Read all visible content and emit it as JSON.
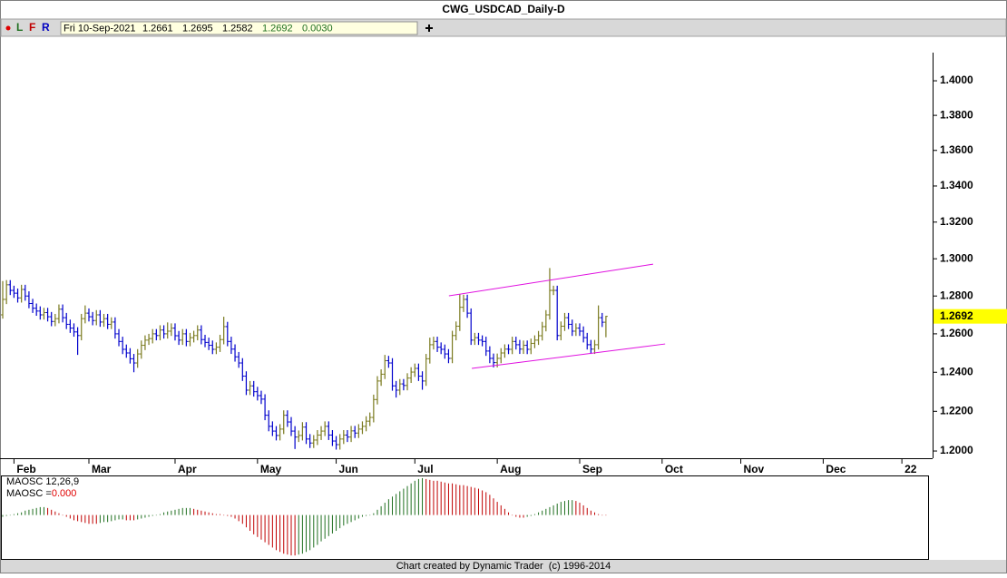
{
  "toolbar": {
    "buttons": [
      "L",
      "F",
      "R"
    ],
    "date": "Fri 10-Sep-2021",
    "change": "0.0030"
  },
  "footer": "Chart created by Dynamic Trader  (c) 1996-2014",
  "chart_data": [
    {
      "type": "ohlc",
      "title": "CWG_USDCAD_Daily-D",
      "log_scale": true,
      "up_color": "#7a7a1e",
      "down_color": "#0000cc",
      "xlim": [
        -0.73,
        248.2
      ],
      "xticks": [
        {
          "value": 3,
          "label": "Feb"
        },
        {
          "value": 23,
          "label": "Mar"
        },
        {
          "value": 46,
          "label": "Apr"
        },
        {
          "value": 68,
          "label": "May"
        },
        {
          "value": 89,
          "label": "Jun"
        },
        {
          "value": 110,
          "label": "Jul"
        },
        {
          "value": 132,
          "label": "Aug"
        },
        {
          "value": 154,
          "label": "Sep"
        },
        {
          "value": 176,
          "label": "Oct"
        },
        {
          "value": 197,
          "label": "Nov"
        },
        {
          "value": 219,
          "label": "Dec"
        },
        {
          "value": 240,
          "label": "22"
        }
      ],
      "ylim": [
        1.1964,
        1.4251
      ],
      "yticks": [
        {
          "value": 1.2,
          "label": "1.2000"
        },
        {
          "value": 1.22,
          "label": "1.2200"
        },
        {
          "value": 1.24,
          "label": "1.2400"
        },
        {
          "value": 1.26,
          "label": "1.2600"
        },
        {
          "value": 1.28,
          "label": "1.2800"
        },
        {
          "value": 1.3,
          "label": "1.3000"
        },
        {
          "value": 1.32,
          "label": "1.3200"
        },
        {
          "value": 1.34,
          "label": "1.3400"
        },
        {
          "value": 1.36,
          "label": "1.3600"
        },
        {
          "value": 1.38,
          "label": "1.3800"
        },
        {
          "value": 1.4,
          "label": "1.4000"
        }
      ],
      "last_price_color": "#ffff00",
      "trendline_color": "#e010e0",
      "trendlines": [
        {
          "x": [
            119.1,
            173.6
          ],
          "y": [
            1.2801,
            1.2971
          ]
        },
        {
          "x": [
            125.2,
            176.8
          ],
          "y": [
            1.242,
            1.2547
          ]
        }
      ],
      "open": [
        1.27,
        1.2782,
        1.286,
        1.283,
        1.2815,
        1.279,
        1.2835,
        1.28,
        1.276,
        1.2735,
        1.272,
        1.27,
        1.2712,
        1.269,
        1.2665,
        1.268,
        1.273,
        1.2685,
        1.265,
        1.263,
        1.261,
        1.2591,
        1.268,
        1.2709,
        1.269,
        1.267,
        1.27,
        1.2662,
        1.268,
        1.265,
        1.2662,
        1.26,
        1.256,
        1.2519,
        1.25,
        1.247,
        1.2448,
        1.2495,
        1.254,
        1.2567,
        1.2575,
        1.26,
        1.2591,
        1.262,
        1.26,
        1.2614,
        1.263,
        1.259,
        1.2567,
        1.26,
        1.256,
        1.258,
        1.2591,
        1.262,
        1.257,
        1.2555,
        1.254,
        1.2519,
        1.253,
        1.257,
        1.2638,
        1.256,
        1.252,
        1.248,
        1.2448,
        1.238,
        1.2308,
        1.233,
        1.23,
        1.228,
        1.2262,
        1.218,
        1.2124,
        1.21,
        1.2078,
        1.211,
        1.218,
        1.2146,
        1.21,
        1.207,
        1.2078,
        1.212,
        1.206,
        1.204,
        1.2055,
        1.208,
        1.21,
        1.2124,
        1.208,
        1.205,
        1.2032,
        1.206,
        1.208,
        1.207,
        1.2101,
        1.209,
        1.211,
        1.2124,
        1.215,
        1.2169,
        1.226,
        1.2355,
        1.239,
        1.246,
        1.2448,
        1.233,
        1.2308,
        1.234,
        1.2332,
        1.237,
        1.2401,
        1.242,
        1.238,
        1.2355,
        1.247,
        1.2543,
        1.256,
        1.253,
        1.2519,
        1.2495,
        1.2472,
        1.2591,
        1.264,
        1.274,
        1.2782,
        1.2709,
        1.2567,
        1.258,
        1.2567,
        1.256,
        1.251,
        1.2472,
        1.245,
        1.2472,
        1.25,
        1.252,
        1.2519,
        1.256,
        1.2543,
        1.252,
        1.254,
        1.2519,
        1.255,
        1.2567,
        1.259,
        1.2638,
        1.27,
        1.283,
        1.283,
        1.2591,
        1.264,
        1.2685,
        1.265,
        1.2614,
        1.263,
        1.2614,
        1.258,
        1.2543,
        1.252,
        1.2543,
        1.2685,
        1.2661
      ],
      "high": [
        1.288,
        1.2885,
        1.2885,
        1.2855,
        1.284,
        1.286,
        1.286,
        1.2825,
        1.2785,
        1.276,
        1.2745,
        1.2737,
        1.2737,
        1.2715,
        1.2705,
        1.2755,
        1.2755,
        1.271,
        1.2675,
        1.2655,
        1.2635,
        1.2705,
        1.275,
        1.2734,
        1.2715,
        1.2725,
        1.2725,
        1.2705,
        1.2705,
        1.2687,
        1.2687,
        1.2625,
        1.2585,
        1.2544,
        1.2525,
        1.2495,
        1.252,
        1.2565,
        1.2592,
        1.26,
        1.2625,
        1.2625,
        1.2645,
        1.2645,
        1.266,
        1.2655,
        1.2655,
        1.2615,
        1.2625,
        1.2625,
        1.2605,
        1.2616,
        1.2645,
        1.2645,
        1.2595,
        1.258,
        1.2565,
        1.2555,
        1.2595,
        1.269,
        1.2663,
        1.2585,
        1.2545,
        1.2505,
        1.2473,
        1.2405,
        1.2355,
        1.2355,
        1.2325,
        1.2305,
        1.2287,
        1.2205,
        1.2149,
        1.2125,
        1.2135,
        1.2205,
        1.2205,
        1.2171,
        1.2125,
        1.2103,
        1.2145,
        1.2145,
        1.2085,
        1.208,
        1.2105,
        1.2125,
        1.2149,
        1.2149,
        1.2105,
        1.2075,
        1.2085,
        1.2105,
        1.2105,
        1.2126,
        1.2126,
        1.2135,
        1.2149,
        1.2175,
        1.2194,
        1.2285,
        1.238,
        1.2415,
        1.249,
        1.2485,
        1.2473,
        1.2355,
        1.2365,
        1.2365,
        1.2395,
        1.2426,
        1.2445,
        1.2445,
        1.2405,
        1.2495,
        1.258,
        1.2585,
        1.2585,
        1.2555,
        1.2544,
        1.252,
        1.2616,
        1.2665,
        1.281,
        1.2807,
        1.2807,
        1.2734,
        1.2605,
        1.2605,
        1.2592,
        1.2585,
        1.2535,
        1.2497,
        1.2497,
        1.2525,
        1.2545,
        1.2545,
        1.2585,
        1.2585,
        1.2568,
        1.2565,
        1.2565,
        1.2575,
        1.2592,
        1.2615,
        1.2663,
        1.2725,
        1.295,
        1.2855,
        1.2855,
        1.2665,
        1.271,
        1.271,
        1.2675,
        1.2655,
        1.2655,
        1.2639,
        1.2605,
        1.2568,
        1.2568,
        1.275,
        1.271,
        1.2695
      ],
      "low": [
        1.268,
        1.2757,
        1.2805,
        1.279,
        1.2765,
        1.2765,
        1.2775,
        1.2735,
        1.271,
        1.2695,
        1.2675,
        1.2675,
        1.2665,
        1.264,
        1.264,
        1.2655,
        1.266,
        1.2625,
        1.2605,
        1.2585,
        1.249,
        1.2566,
        1.2655,
        1.2665,
        1.2645,
        1.2645,
        1.2637,
        1.2637,
        1.2625,
        1.2625,
        1.2575,
        1.2535,
        1.2494,
        1.2475,
        1.2445,
        1.24,
        1.2423,
        1.247,
        1.2515,
        1.2542,
        1.255,
        1.2566,
        1.2566,
        1.2575,
        1.2575,
        1.2589,
        1.2565,
        1.2542,
        1.2542,
        1.2535,
        1.2535,
        1.2555,
        1.2566,
        1.2545,
        1.253,
        1.2515,
        1.2494,
        1.2494,
        1.2505,
        1.2545,
        1.2535,
        1.2495,
        1.2455,
        1.2423,
        1.2355,
        1.2283,
        1.2283,
        1.2275,
        1.2255,
        1.2237,
        1.2155,
        1.2099,
        1.2075,
        1.2053,
        1.2053,
        1.2085,
        1.2121,
        1.2075,
        1.201,
        1.2045,
        1.2053,
        1.2035,
        1.2015,
        1.2015,
        1.203,
        1.2055,
        1.2075,
        1.2055,
        1.2025,
        1.2007,
        1.2007,
        1.2035,
        1.2045,
        1.2045,
        1.2065,
        1.2065,
        1.2085,
        1.2099,
        1.2125,
        1.2144,
        1.2235,
        1.233,
        1.2365,
        1.2423,
        1.2305,
        1.227,
        1.2283,
        1.2307,
        1.2307,
        1.2345,
        1.2376,
        1.2355,
        1.231,
        1.233,
        1.2445,
        1.2518,
        1.2505,
        1.2494,
        1.247,
        1.2447,
        1.2447,
        1.2566,
        1.2615,
        1.2715,
        1.2684,
        1.2542,
        1.2542,
        1.2542,
        1.2535,
        1.2485,
        1.2447,
        1.2425,
        1.2425,
        1.2447,
        1.2475,
        1.2494,
        1.2494,
        1.2518,
        1.2495,
        1.2495,
        1.2494,
        1.2494,
        1.2525,
        1.2542,
        1.2565,
        1.2613,
        1.2675,
        1.2805,
        1.2566,
        1.2566,
        1.2615,
        1.2625,
        1.2589,
        1.2589,
        1.2589,
        1.2555,
        1.2518,
        1.2495,
        1.2495,
        1.2518,
        1.2636,
        1.2582
      ],
      "close": [
        1.2782,
        1.286,
        1.283,
        1.2815,
        1.279,
        1.2835,
        1.28,
        1.276,
        1.2735,
        1.272,
        1.27,
        1.2712,
        1.269,
        1.2665,
        1.268,
        1.273,
        1.2685,
        1.265,
        1.263,
        1.261,
        1.2591,
        1.268,
        1.2709,
        1.269,
        1.267,
        1.27,
        1.2662,
        1.268,
        1.265,
        1.2662,
        1.26,
        1.256,
        1.2519,
        1.25,
        1.247,
        1.2448,
        1.2495,
        1.254,
        1.2567,
        1.2575,
        1.26,
        1.2591,
        1.262,
        1.26,
        1.2614,
        1.263,
        1.259,
        1.2567,
        1.26,
        1.256,
        1.258,
        1.2591,
        1.262,
        1.257,
        1.2555,
        1.254,
        1.2519,
        1.253,
        1.257,
        1.2638,
        1.256,
        1.252,
        1.248,
        1.2448,
        1.238,
        1.2308,
        1.233,
        1.23,
        1.228,
        1.2262,
        1.218,
        1.2124,
        1.21,
        1.2078,
        1.211,
        1.218,
        1.2146,
        1.21,
        1.207,
        1.2078,
        1.212,
        1.206,
        1.204,
        1.2055,
        1.208,
        1.21,
        1.2124,
        1.208,
        1.205,
        1.2032,
        1.206,
        1.208,
        1.207,
        1.2101,
        1.209,
        1.211,
        1.2124,
        1.215,
        1.2169,
        1.226,
        1.2355,
        1.239,
        1.246,
        1.2448,
        1.233,
        1.2308,
        1.234,
        1.2332,
        1.237,
        1.2401,
        1.242,
        1.238,
        1.2355,
        1.247,
        1.2543,
        1.256,
        1.253,
        1.2519,
        1.2495,
        1.2472,
        1.2591,
        1.264,
        1.274,
        1.2782,
        1.2709,
        1.2567,
        1.258,
        1.2567,
        1.256,
        1.251,
        1.2472,
        1.245,
        1.2472,
        1.25,
        1.252,
        1.2519,
        1.256,
        1.2543,
        1.252,
        1.254,
        1.2519,
        1.255,
        1.2567,
        1.259,
        1.2638,
        1.27,
        1.283,
        1.283,
        1.2591,
        1.264,
        1.2685,
        1.265,
        1.2614,
        1.263,
        1.2614,
        1.258,
        1.2543,
        1.252,
        1.2543,
        1.2685,
        1.2661,
        1.2692
      ]
    },
    {
      "type": "histogram",
      "title": "MAOSC 12,26,9",
      "readout_name": "MAOSC =",
      "readout": "0.000",
      "up_color": "#207020",
      "down_color": "#c00000",
      "ylim": [
        -0.025,
        0.022
      ],
      "values": [
        -0.001,
        -0.0005,
        0,
        0.0005,
        0.001,
        0.0015,
        0.0025,
        0.003,
        0.0035,
        0.004,
        0.0045,
        0.0045,
        0.004,
        0.003,
        0.002,
        0.001,
        0,
        -0.001,
        -0.002,
        -0.003,
        -0.0035,
        -0.004,
        -0.0045,
        -0.005,
        -0.005,
        -0.005,
        -0.0045,
        -0.004,
        -0.004,
        -0.0035,
        -0.003,
        -0.0025,
        -0.0025,
        -0.003,
        -0.003,
        -0.003,
        -0.0025,
        -0.002,
        -0.0015,
        -0.001,
        -0.0005,
        0,
        0.0005,
        0.0015,
        0.002,
        0.0025,
        0.003,
        0.0035,
        0.004,
        0.004,
        0.004,
        0.0035,
        0.003,
        0.0025,
        0.002,
        0.0015,
        0.001,
        0.0005,
        0.0005,
        0,
        -0.0005,
        -0.001,
        -0.002,
        -0.0035,
        -0.005,
        -0.007,
        -0.009,
        -0.011,
        -0.0125,
        -0.014,
        -0.0155,
        -0.017,
        -0.0185,
        -0.02,
        -0.021,
        -0.022,
        -0.0225,
        -0.023,
        -0.023,
        -0.0225,
        -0.022,
        -0.021,
        -0.02,
        -0.0185,
        -0.017,
        -0.015,
        -0.0135,
        -0.012,
        -0.0105,
        -0.009,
        -0.0075,
        -0.006,
        -0.005,
        -0.004,
        -0.003,
        -0.002,
        -0.001,
        -0.0005,
        0,
        0.001,
        0.003,
        0.005,
        0.007,
        0.009,
        0.0105,
        0.012,
        0.0135,
        0.015,
        0.0165,
        0.018,
        0.0195,
        0.0205,
        0.021,
        0.0205,
        0.02,
        0.0195,
        0.0195,
        0.019,
        0.0185,
        0.018,
        0.018,
        0.0175,
        0.017,
        0.017,
        0.0165,
        0.016,
        0.0155,
        0.015,
        0.014,
        0.013,
        0.0115,
        0.0095,
        0.0075,
        0.0055,
        0.0035,
        0.0015,
        0,
        -0.001,
        -0.0015,
        -0.0015,
        -0.001,
        -0.0005,
        0.0005,
        0.0015,
        0.0025,
        0.0035,
        0.0045,
        0.0055,
        0.0065,
        0.0075,
        0.008,
        0.0085,
        0.0085,
        0.008,
        0.007,
        0.0055,
        0.004,
        0.0025,
        0.0015,
        0.0005,
        0,
        0
      ]
    }
  ]
}
